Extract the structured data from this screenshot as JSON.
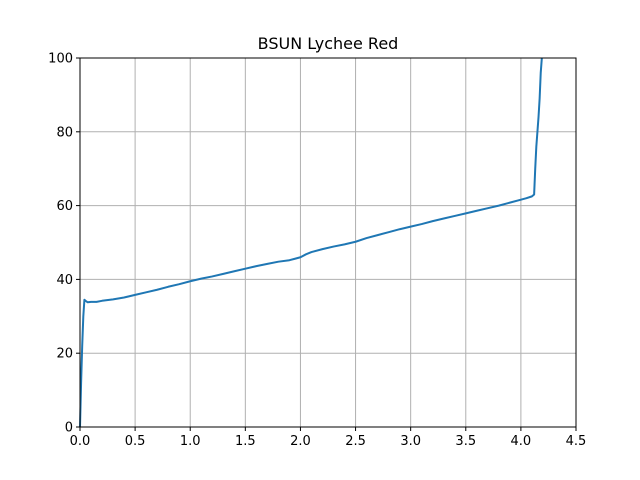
{
  "chart_data": {
    "type": "line",
    "title": "BSUN Lychee Red",
    "xlabel": "",
    "ylabel": "",
    "xlim": [
      0,
      4.5
    ],
    "ylim": [
      0,
      100
    ],
    "grid": true,
    "x_ticks": [
      0.0,
      0.5,
      1.0,
      1.5,
      2.0,
      2.5,
      3.0,
      3.5,
      4.0,
      4.5
    ],
    "x_tick_labels": [
      "0.0",
      "0.5",
      "1.0",
      "1.5",
      "2.0",
      "2.5",
      "3.0",
      "3.5",
      "4.0",
      "4.5"
    ],
    "y_ticks": [
      0,
      20,
      40,
      60,
      80,
      100
    ],
    "y_tick_labels": [
      "0",
      "20",
      "40",
      "60",
      "80",
      "100"
    ],
    "colors": {
      "series": "#1f77b4",
      "grid": "#b0b0b0",
      "axes": "#000000"
    },
    "series": [
      {
        "x": [
          0.0,
          0.01,
          0.02,
          0.03,
          0.04,
          0.05,
          0.07,
          0.1,
          0.15,
          0.2,
          0.3,
          0.4,
          0.5,
          0.6,
          0.7,
          0.8,
          0.9,
          1.0,
          1.1,
          1.2,
          1.3,
          1.4,
          1.5,
          1.6,
          1.7,
          1.8,
          1.9,
          1.95,
          2.0,
          2.05,
          2.1,
          2.2,
          2.3,
          2.4,
          2.5,
          2.6,
          2.7,
          2.8,
          2.9,
          3.0,
          3.1,
          3.2,
          3.3,
          3.4,
          3.5,
          3.6,
          3.7,
          3.8,
          3.9,
          4.0,
          4.05,
          4.1,
          4.12,
          4.13,
          4.14,
          4.15,
          4.16,
          4.17,
          4.18,
          4.19
        ],
        "y": [
          0.0,
          12.0,
          22.0,
          30.0,
          34.5,
          34.2,
          33.8,
          33.9,
          33.9,
          34.2,
          34.6,
          35.1,
          35.8,
          36.5,
          37.2,
          38.0,
          38.7,
          39.5,
          40.2,
          40.8,
          41.5,
          42.2,
          42.9,
          43.6,
          44.2,
          44.8,
          45.2,
          45.6,
          46.0,
          46.8,
          47.4,
          48.2,
          48.9,
          49.5,
          50.2,
          51.2,
          52.0,
          52.8,
          53.6,
          54.3,
          55.0,
          55.8,
          56.5,
          57.2,
          57.9,
          58.6,
          59.3,
          60.0,
          60.8,
          61.6,
          62.0,
          62.5,
          63.0,
          70.0,
          76.0,
          80.0,
          84.0,
          89.0,
          96.0,
          100.0
        ]
      }
    ]
  }
}
